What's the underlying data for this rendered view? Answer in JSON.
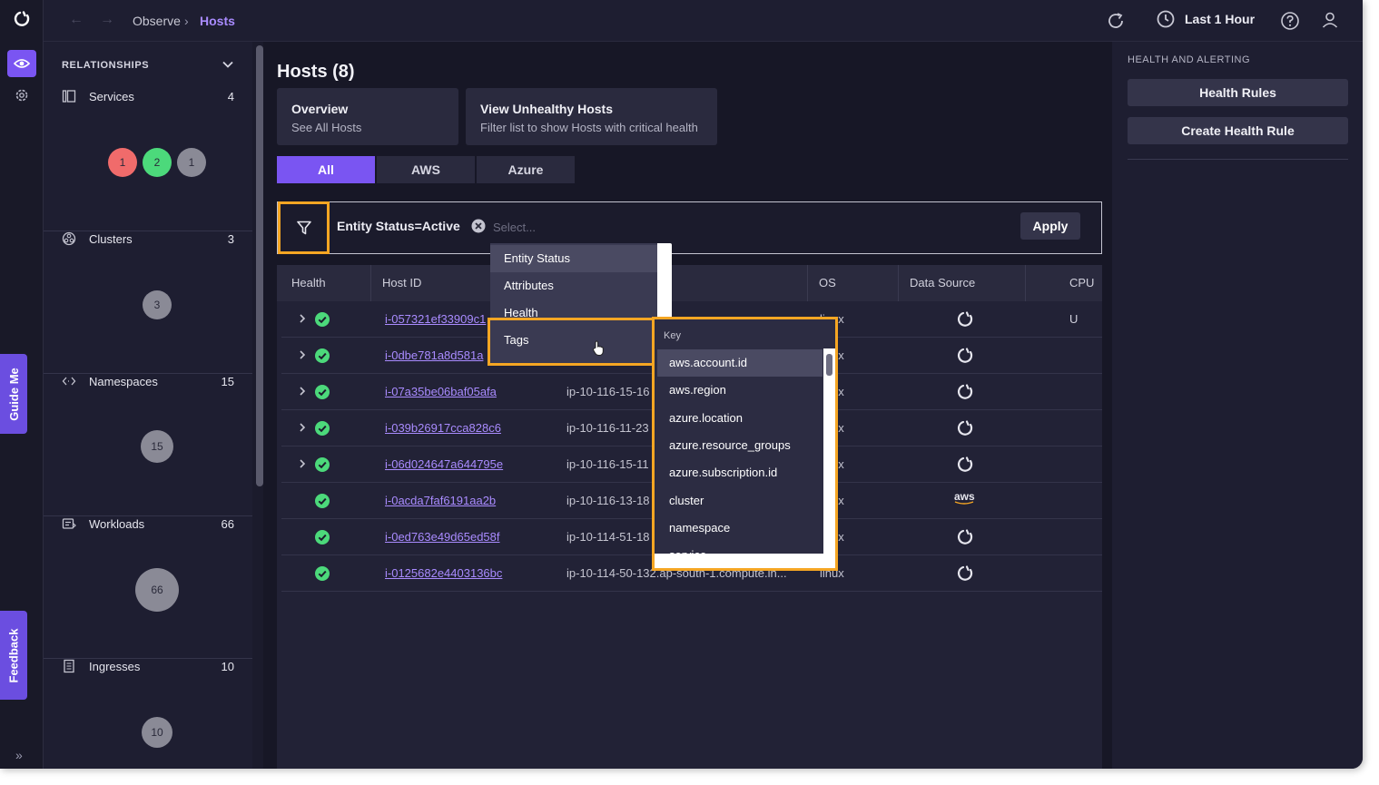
{
  "breadcrumb": {
    "parent": "Observe",
    "current": "Hosts"
  },
  "header": {
    "time_range": "Last 1 Hour"
  },
  "side_tabs": {
    "guide": "Guide Me",
    "feedback": "Feedback"
  },
  "relationships": {
    "title": "RELATIONSHIPS",
    "sections": [
      {
        "name": "Services",
        "count": "4",
        "bubbles": [
          {
            "value": "1",
            "color": "#f06b6b"
          },
          {
            "value": "2",
            "color": "#4cd97b"
          },
          {
            "value": "1",
            "color": "#8a8a96"
          }
        ]
      },
      {
        "name": "Clusters",
        "count": "3",
        "bubbles": [
          {
            "value": "3",
            "color": "#8a8a96"
          }
        ]
      },
      {
        "name": "Namespaces",
        "count": "15",
        "bubbles": [
          {
            "value": "15",
            "color": "#8a8a96"
          }
        ]
      },
      {
        "name": "Workloads",
        "count": "66",
        "bubbles": [
          {
            "value": "66",
            "color": "#8a8a96"
          }
        ]
      },
      {
        "name": "Ingresses",
        "count": "10",
        "bubbles": [
          {
            "value": "10",
            "color": "#8a8a96"
          }
        ]
      }
    ]
  },
  "main": {
    "title": "Hosts (8)",
    "cards": [
      {
        "title": "Overview",
        "subtitle": "See All Hosts"
      },
      {
        "title": "View Unhealthy Hosts",
        "subtitle": "Filter list to show Hosts with critical health"
      }
    ],
    "tabs": [
      "All",
      "AWS",
      "Azure"
    ],
    "filter": {
      "chip": "Entity Status=Active",
      "placeholder": "Select...",
      "apply": "Apply"
    },
    "table": {
      "columns": [
        "Health",
        "Host ID",
        "",
        "OS",
        "Data Source",
        "CPU U"
      ],
      "rows": [
        {
          "expandable": true,
          "host_id": "i-057321ef33909c1",
          "hostname": "",
          "os": "linux",
          "source": "appd"
        },
        {
          "expandable": true,
          "host_id": "i-0dbe781a8d581a",
          "hostname": "",
          "os": "linux",
          "source": "appd"
        },
        {
          "expandable": true,
          "host_id": "i-07a35be06baf05afa",
          "hostname": "ip-10-116-15-16",
          "os": "linux",
          "source": "appd"
        },
        {
          "expandable": true,
          "host_id": "i-039b26917cca828c6",
          "hostname": "ip-10-116-11-23",
          "os": "linux",
          "source": "appd"
        },
        {
          "expandable": true,
          "host_id": "i-06d024647a644795e",
          "hostname": "ip-10-116-15-11",
          "os": "linux",
          "source": "appd"
        },
        {
          "expandable": false,
          "host_id": "i-0acda7faf6191aa2b",
          "hostname": "ip-10-116-13-18",
          "os": "linux",
          "source": "aws"
        },
        {
          "expandable": false,
          "host_id": "i-0ed763e49d65ed58f",
          "hostname": "ip-10-114-51-18",
          "os": "linux",
          "source": "appd"
        },
        {
          "expandable": false,
          "host_id": "i-0125682e4403136bc",
          "hostname": "ip-10-114-50-132.ap-south-1.compute.in...",
          "os": "linux",
          "source": "appd"
        }
      ]
    }
  },
  "filter_menu": {
    "items": [
      "Entity Status",
      "Attributes",
      "Health",
      "Tags"
    ],
    "key_menu": {
      "header": "Key",
      "items": [
        "aws.account.id",
        "aws.region",
        "azure.location",
        "azure.resource_groups",
        "azure.subscription.id",
        "cluster",
        "namespace",
        "service"
      ]
    }
  },
  "health_panel": {
    "title": "HEALTH AND ALERTING",
    "buttons": [
      "Health Rules",
      "Create Health Rule"
    ]
  },
  "colors": {
    "accent": "#7a55f2",
    "highlight": "#f5a623",
    "success": "#4cd97b",
    "critical": "#f06b6b"
  }
}
